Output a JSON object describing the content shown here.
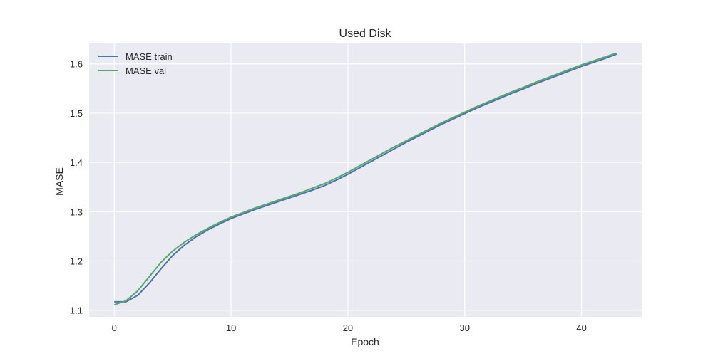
{
  "chart_data": {
    "type": "line",
    "title": "Used Disk",
    "xlabel": "Epoch",
    "ylabel": "MASE",
    "xlim": [
      -2.15,
      45.15
    ],
    "ylim": [
      1.0865,
      1.643
    ],
    "xticks": [
      0,
      10,
      20,
      30,
      40
    ],
    "yticks": [
      1.1,
      1.2,
      1.3,
      1.4,
      1.5,
      1.6
    ],
    "grid": true,
    "legend_position": "top-left",
    "colors": {
      "background": "#eaeaf2",
      "grid": "#ffffff",
      "train": "#4c72b0",
      "val": "#55a868"
    },
    "x": [
      0,
      1,
      2,
      3,
      4,
      5,
      6,
      7,
      8,
      9,
      10,
      11,
      12,
      13,
      14,
      15,
      16,
      17,
      18,
      19,
      20,
      21,
      22,
      23,
      24,
      25,
      26,
      27,
      28,
      29,
      30,
      31,
      32,
      33,
      34,
      35,
      36,
      37,
      38,
      39,
      40,
      41,
      42,
      43
    ],
    "series": [
      {
        "name": "MASE train",
        "values": [
          1.117,
          1.117,
          1.13,
          1.155,
          1.184,
          1.211,
          1.232,
          1.249,
          1.263,
          1.275,
          1.286,
          1.295,
          1.304,
          1.312,
          1.32,
          1.328,
          1.336,
          1.344,
          1.353,
          1.364,
          1.376,
          1.389,
          1.402,
          1.415,
          1.428,
          1.441,
          1.453,
          1.465,
          1.477,
          1.488,
          1.499,
          1.51,
          1.52,
          1.53,
          1.54,
          1.549,
          1.559,
          1.568,
          1.577,
          1.586,
          1.595,
          1.603,
          1.611,
          1.62
        ]
      },
      {
        "name": "MASE val",
        "values": [
          1.111,
          1.119,
          1.139,
          1.168,
          1.197,
          1.22,
          1.238,
          1.253,
          1.266,
          1.278,
          1.289,
          1.298,
          1.307,
          1.315,
          1.323,
          1.331,
          1.339,
          1.348,
          1.357,
          1.368,
          1.38,
          1.393,
          1.406,
          1.419,
          1.432,
          1.444,
          1.456,
          1.468,
          1.48,
          1.491,
          1.502,
          1.513,
          1.523,
          1.533,
          1.543,
          1.552,
          1.562,
          1.571,
          1.58,
          1.589,
          1.598,
          1.606,
          1.614,
          1.622
        ]
      }
    ]
  }
}
